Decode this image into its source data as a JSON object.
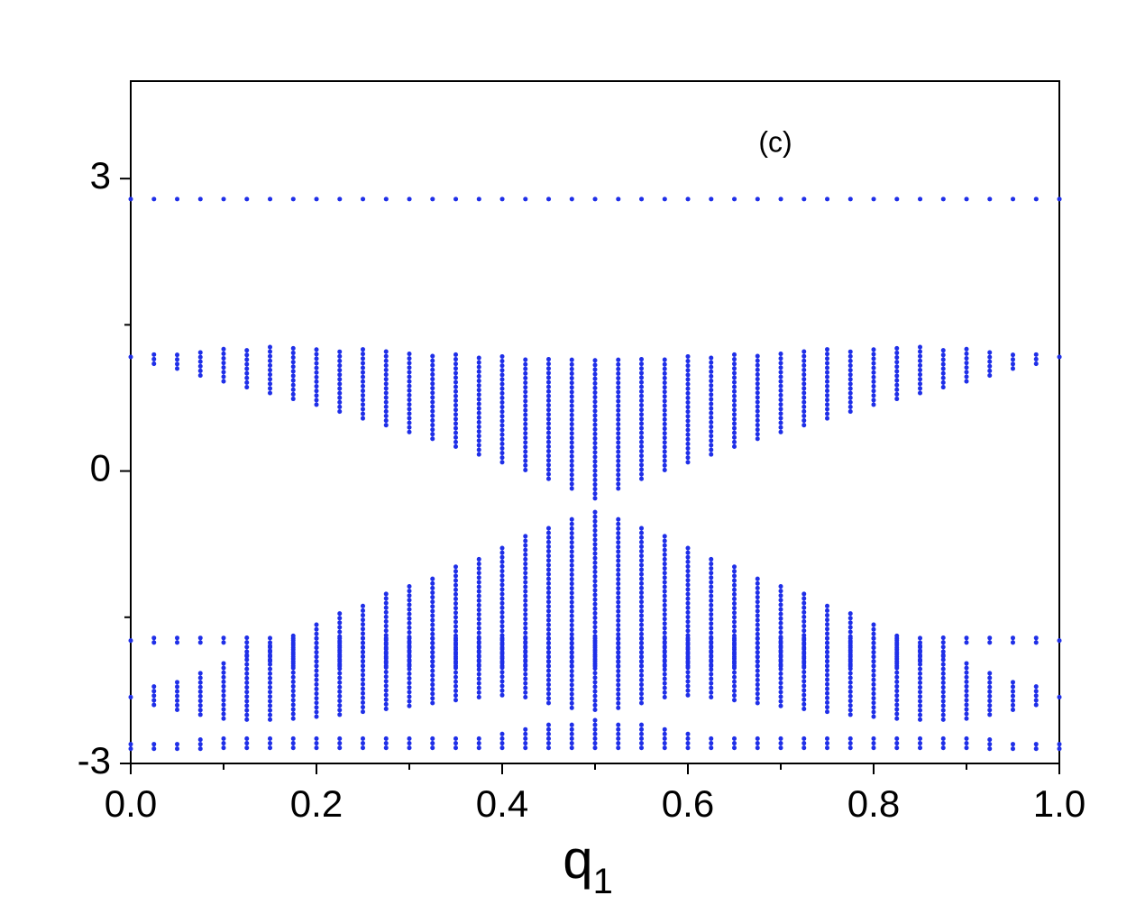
{
  "chart_data": {
    "type": "range",
    "annotation": "(c)",
    "x_label": "q",
    "x_label_subscript": "1",
    "xlim": [
      0,
      1
    ],
    "ylim": [
      -3,
      4
    ],
    "xticks": [
      {
        "value": 0,
        "label": "0.0"
      },
      {
        "value": 0.2,
        "label": "0.2"
      },
      {
        "value": 0.4,
        "label": "0.4"
      },
      {
        "value": 0.6,
        "label": "0.6"
      },
      {
        "value": 0.8,
        "label": "0.8"
      },
      {
        "value": 1,
        "label": "1.0"
      }
    ],
    "xminorticks": [
      0.1,
      0.3,
      0.5,
      0.7,
      0.9
    ],
    "yticks": [
      -3,
      0,
      3
    ],
    "yminorticks": [
      -1.5,
      1.5
    ],
    "x": [
      0,
      0.025,
      0.05,
      0.075,
      0.1,
      0.125,
      0.15,
      0.175,
      0.2,
      0.225,
      0.25,
      0.275,
      0.3,
      0.325,
      0.35,
      0.375,
      0.4,
      0.425,
      0.45,
      0.475,
      0.5,
      0.525,
      0.55,
      0.575,
      0.6,
      0.625,
      0.65,
      0.675,
      0.7,
      0.725,
      0.75,
      0.775,
      0.8,
      0.825,
      0.85,
      0.875,
      0.9,
      0.925,
      0.95,
      0.975,
      1
    ],
    "series": [
      {
        "color": "#1f2fe8",
        "low": [
          2.79,
          2.79,
          2.79,
          2.79,
          2.79,
          2.79,
          2.79,
          2.79,
          2.79,
          2.79,
          2.79,
          2.79,
          2.79,
          2.79,
          2.79,
          2.79,
          2.79,
          2.79,
          2.79,
          2.79,
          2.79,
          2.79,
          2.79,
          2.79,
          2.79,
          2.79,
          2.79,
          2.79,
          2.79,
          2.79,
          2.79,
          2.79,
          2.79,
          2.79,
          2.79,
          2.79,
          2.79,
          2.79,
          2.79,
          2.79,
          2.79
        ],
        "high": [
          2.79,
          2.79,
          2.79,
          2.79,
          2.79,
          2.79,
          2.79,
          2.79,
          2.79,
          2.79,
          2.79,
          2.79,
          2.79,
          2.79,
          2.79,
          2.79,
          2.79,
          2.79,
          2.79,
          2.79,
          2.79,
          2.79,
          2.79,
          2.79,
          2.79,
          2.79,
          2.79,
          2.79,
          2.79,
          2.79,
          2.79,
          2.79,
          2.79,
          2.79,
          2.79,
          2.79,
          2.79,
          2.79,
          2.79,
          2.79,
          2.79
        ]
      },
      {
        "color": "#1f2fe8",
        "low": [
          1.17,
          1.1,
          1.05,
          0.98,
          0.92,
          0.86,
          0.8,
          0.74,
          0.68,
          0.61,
          0.54,
          0.47,
          0.4,
          0.33,
          0.25,
          0.17,
          0.09,
          0.01,
          -0.08,
          -0.18,
          -0.28,
          -0.18,
          -0.08,
          0.01,
          0.09,
          0.17,
          0.25,
          0.33,
          0.4,
          0.47,
          0.54,
          0.61,
          0.68,
          0.74,
          0.8,
          0.86,
          0.92,
          0.98,
          1.05,
          1.1,
          1.17
        ],
        "high": [
          1.17,
          1.2,
          1.23,
          1.25,
          1.27,
          1.28,
          1.28,
          1.28,
          1.27,
          1.26,
          1.25,
          1.24,
          1.23,
          1.22,
          1.21,
          1.2,
          1.19,
          1.18,
          1.17,
          1.17,
          1.17,
          1.17,
          1.17,
          1.18,
          1.19,
          1.2,
          1.21,
          1.22,
          1.23,
          1.24,
          1.25,
          1.26,
          1.27,
          1.28,
          1.28,
          1.28,
          1.27,
          1.25,
          1.23,
          1.2,
          1.17
        ]
      },
      {
        "color": "#1f2fe8",
        "low": [
          -2.32,
          -2.4,
          -2.45,
          -2.5,
          -2.54,
          -2.55,
          -2.55,
          -2.54,
          -2.52,
          -2.5,
          -2.47,
          -2.44,
          -2.41,
          -2.38,
          -2.35,
          -2.32,
          -2.3,
          -2.32,
          -2.38,
          -2.43,
          -2.45,
          -2.43,
          -2.38,
          -2.32,
          -2.3,
          -2.32,
          -2.35,
          -2.38,
          -2.41,
          -2.44,
          -2.47,
          -2.5,
          -2.52,
          -2.54,
          -2.55,
          -2.55,
          -2.54,
          -2.5,
          -2.45,
          -2.4,
          -2.32
        ],
        "high": [
          -2.29,
          -2.2,
          -2.12,
          -2.03,
          -1.95,
          -1.85,
          -1.76,
          -1.66,
          -1.56,
          -1.46,
          -1.36,
          -1.26,
          -1.16,
          -1.06,
          -0.96,
          -0.86,
          -0.76,
          -0.66,
          -0.56,
          -0.47,
          -0.4,
          -0.47,
          -0.56,
          -0.66,
          -0.76,
          -0.86,
          -0.96,
          -1.06,
          -1.16,
          -1.26,
          -1.36,
          -1.46,
          -1.56,
          -1.66,
          -1.76,
          -1.85,
          -1.95,
          -2.03,
          -2.12,
          -2.2,
          -2.29
        ]
      },
      {
        "color": "#1f2fe8",
        "low": [
          -1.74,
          -1.76,
          -1.76,
          -1.76,
          -1.76,
          -1.9,
          -1.95,
          -2.0,
          -2.0,
          -2.0,
          -2.0,
          -2.0,
          -2.0,
          -2.0,
          -2.0,
          -2.0,
          -2.0,
          -2.0,
          -2.0,
          -2.0,
          -2.0,
          -2.0,
          -2.0,
          -2.0,
          -2.0,
          -2.0,
          -2.0,
          -2.0,
          -2.0,
          -2.0,
          -2.0,
          -2.0,
          -2.0,
          -2.0,
          -1.95,
          -1.9,
          -1.76,
          -1.76,
          -1.76,
          -1.76,
          -1.74
        ],
        "high": [
          -1.71,
          -1.71,
          -1.71,
          -1.71,
          -1.71,
          -1.71,
          -1.71,
          -1.71,
          -1.71,
          -1.71,
          -1.71,
          -1.71,
          -1.71,
          -1.71,
          -1.71,
          -1.71,
          -1.71,
          -1.71,
          -1.71,
          -1.71,
          -1.71,
          -1.71,
          -1.71,
          -1.71,
          -1.71,
          -1.71,
          -1.71,
          -1.71,
          -1.71,
          -1.71,
          -1.71,
          -1.71,
          -1.71,
          -1.71,
          -1.71,
          -1.71,
          -1.71,
          -1.71,
          -1.71,
          -1.71,
          -1.71
        ]
      },
      {
        "color": "#1f2fe8",
        "low": [
          -2.85,
          -2.85,
          -2.85,
          -2.85,
          -2.84,
          -2.84,
          -2.84,
          -2.84,
          -2.84,
          -2.84,
          -2.84,
          -2.84,
          -2.84,
          -2.84,
          -2.84,
          -2.84,
          -2.84,
          -2.84,
          -2.84,
          -2.84,
          -2.84,
          -2.84,
          -2.84,
          -2.84,
          -2.84,
          -2.84,
          -2.84,
          -2.84,
          -2.84,
          -2.84,
          -2.84,
          -2.84,
          -2.84,
          -2.84,
          -2.84,
          -2.84,
          -2.84,
          -2.85,
          -2.85,
          -2.85,
          -2.85
        ],
        "high": [
          -2.77,
          -2.77,
          -2.76,
          -2.75,
          -2.74,
          -2.72,
          -2.71,
          -2.7,
          -2.7,
          -2.71,
          -2.73,
          -2.74,
          -2.74,
          -2.73,
          -2.72,
          -2.7,
          -2.67,
          -2.63,
          -2.6,
          -2.57,
          -2.55,
          -2.57,
          -2.6,
          -2.63,
          -2.67,
          -2.7,
          -2.72,
          -2.73,
          -2.74,
          -2.74,
          -2.73,
          -2.71,
          -2.7,
          -2.7,
          -2.71,
          -2.72,
          -2.74,
          -2.75,
          -2.76,
          -2.77,
          -2.77
        ]
      }
    ]
  }
}
